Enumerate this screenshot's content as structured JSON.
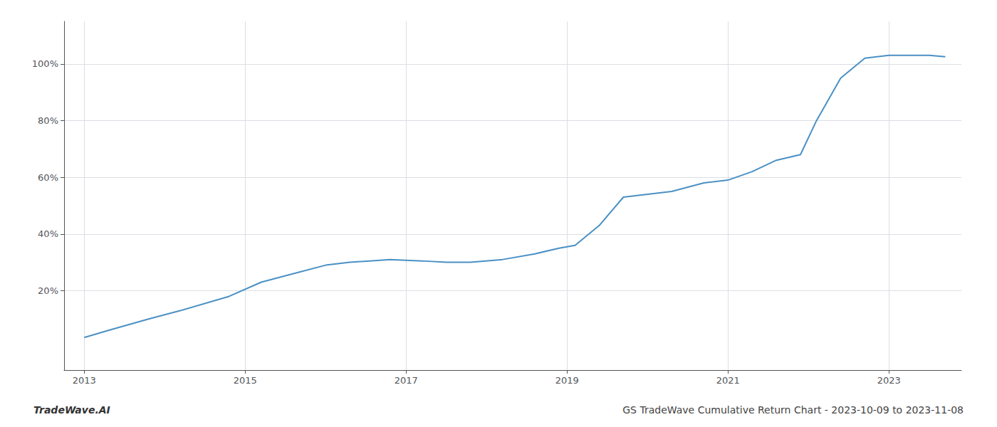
{
  "chart_data": {
    "type": "line",
    "title": "GS TradeWave Cumulative Return Chart - 2023-10-09 to 2023-11-08",
    "annotations": [
      "TradeWave.AI"
    ],
    "x": [
      2013.0,
      2013.3,
      2013.8,
      2014.2,
      2014.8,
      2015.2,
      2015.6,
      2016.0,
      2016.3,
      2016.8,
      2017.2,
      2017.5,
      2017.8,
      2018.2,
      2018.6,
      2018.9,
      2019.1,
      2019.4,
      2019.7,
      2020.0,
      2020.3,
      2020.7,
      2021.0,
      2021.3,
      2021.6,
      2021.9,
      2022.1,
      2022.4,
      2022.7,
      2023.0,
      2023.3,
      2023.5,
      2023.7
    ],
    "values": [
      3.5,
      6,
      10,
      13,
      18,
      23,
      26,
      29,
      30,
      31,
      30.5,
      30,
      30,
      31,
      33,
      35,
      36,
      43,
      53,
      54,
      55,
      58,
      59,
      62,
      66,
      68,
      80,
      95,
      102,
      103,
      103,
      103,
      102.5
    ],
    "color": "#4a90c4",
    "xlim": [
      2012.75,
      2023.9
    ],
    "xticks": [
      2013,
      2015,
      2017,
      2019,
      2021,
      2023
    ],
    "ylim": [
      -8,
      115
    ],
    "yticks": [
      {
        "value": 20,
        "label": "20%"
      },
      {
        "value": 40,
        "label": "40%"
      },
      {
        "value": 60,
        "label": "60%"
      },
      {
        "value": 80,
        "label": "80%"
      },
      {
        "value": 100,
        "label": "100%"
      }
    ],
    "grid": true
  }
}
